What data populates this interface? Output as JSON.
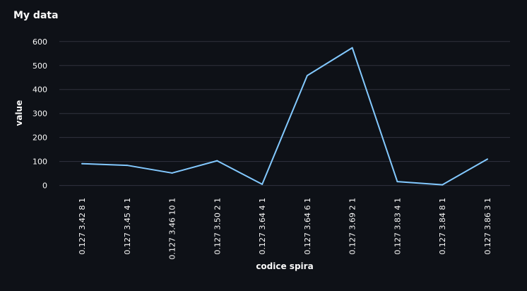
{
  "chart_data": {
    "type": "line",
    "title": "My data",
    "xlabel": "codice spira",
    "ylabel": "value",
    "ylim": [
      -10,
      620
    ],
    "yticks": [
      0,
      100,
      200,
      300,
      400,
      500,
      600
    ],
    "grid": true,
    "categories": [
      "0.127 3.42 8 1",
      "0.127 3.45 4 1",
      "0.127 3.46 10 1",
      "0.127 3.50 2 1",
      "0.127 3.64 4 1",
      "0.127 3.64 6 1",
      "0.127 3.69 2 1",
      "0.127 3.83 4 1",
      "0.127 3.84 8 1",
      "0.127 3.86 3 1"
    ],
    "series": [
      {
        "name": "value",
        "values": [
          91,
          84,
          52,
          103,
          5,
          458,
          574,
          16,
          3,
          110
        ]
      }
    ],
    "colors": {
      "line": "#83c9ff",
      "grid": "#31333f",
      "text": "#fafafa",
      "background": "#0e1117"
    }
  }
}
